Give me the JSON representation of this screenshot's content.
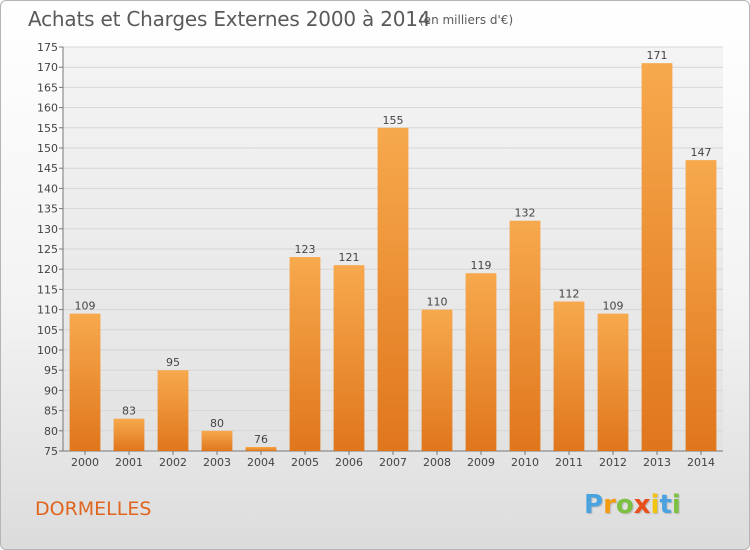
{
  "title": "Achats et Charges Externes 2000 à 2014",
  "subtitle": "(en milliers d'€)",
  "place": "DORMELLES",
  "logo": {
    "letters": [
      "P",
      "r",
      "o",
      "x",
      "i",
      "t",
      "i"
    ],
    "colors": [
      "#4aa3df",
      "#f39c12",
      "#7cc142",
      "#e94e1b",
      "#f1c40f",
      "#4aa3df",
      "#7cc142"
    ]
  },
  "colors": {
    "bar_light": "#f7a94d",
    "bar_dark": "#e0761c",
    "place_text": "#e0661f"
  },
  "chart_data": {
    "type": "bar",
    "title": "Achats et Charges Externes 2000 à 2014",
    "subtitle": "(en milliers d'€)",
    "xlabel": "",
    "ylabel": "",
    "categories": [
      "2000",
      "2001",
      "2002",
      "2003",
      "2004",
      "2005",
      "2006",
      "2007",
      "2008",
      "2009",
      "2010",
      "2011",
      "2012",
      "2013",
      "2014"
    ],
    "values": [
      109,
      83,
      95,
      80,
      76,
      123,
      121,
      155,
      110,
      119,
      132,
      112,
      109,
      171,
      147
    ],
    "ylim": [
      75,
      175
    ],
    "yticks": [
      75,
      80,
      85,
      90,
      95,
      100,
      105,
      110,
      115,
      120,
      125,
      130,
      135,
      140,
      145,
      150,
      155,
      160,
      165,
      170,
      175
    ],
    "grid": true,
    "data_labels": true
  }
}
